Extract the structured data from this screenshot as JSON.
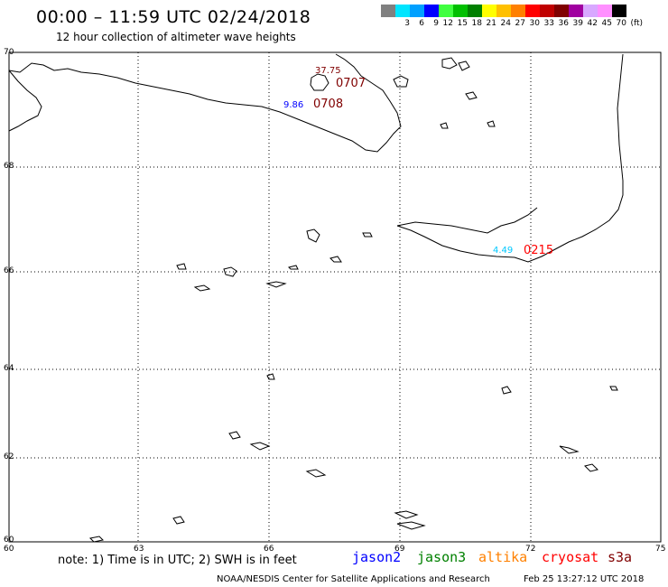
{
  "header": {
    "title": "00:00 – 11:59 UTC 02/24/2018",
    "subtitle": "12 hour collection of altimeter wave heights"
  },
  "color_scale": {
    "unit": "(ft)",
    "levels": [
      "3",
      "6",
      "9",
      "12",
      "15",
      "18",
      "21",
      "24",
      "27",
      "30",
      "33",
      "36",
      "39",
      "42",
      "45",
      "70"
    ],
    "colors": [
      "#808080",
      "#00e5ff",
      "#00a0ff",
      "#0000ff",
      "#40ff40",
      "#00c000",
      "#008000",
      "#ffff00",
      "#ffc000",
      "#ff8000",
      "#ff0000",
      "#c00000",
      "#800000",
      "#a000a0",
      "#d8a8ff",
      "#ff90ff",
      "#000000"
    ]
  },
  "axes": {
    "lat_labels": [
      "70",
      "68",
      "66",
      "64",
      "62",
      "60"
    ],
    "lon_labels": [
      "60",
      "63",
      "66",
      "69",
      "72",
      "75"
    ]
  },
  "annotations": [
    {
      "name": "swh-37-75",
      "text": "37.75",
      "color": "#800000"
    },
    {
      "name": "time-0707",
      "text": "0707",
      "color": "#800000"
    },
    {
      "name": "swh-9-86",
      "text": "9.86",
      "color": "#0000ff"
    },
    {
      "name": "time-0708",
      "text": "0708",
      "color": "#800000"
    },
    {
      "name": "swh-4-49",
      "text": "4.49",
      "color": "#00c8ff"
    },
    {
      "name": "time-0215",
      "text": "0215",
      "color": "#ff0000"
    }
  ],
  "footer": {
    "note": "note: 1) Time is in UTC; 2) SWH is in feet",
    "satellites": [
      {
        "name": "jason2",
        "color": "#0000ff"
      },
      {
        "name": "jason3",
        "color": "#008000"
      },
      {
        "name": "altika",
        "color": "#ff8000"
      },
      {
        "name": "cryosat",
        "color": "#ff0000"
      },
      {
        "name": "s3a",
        "color": "#800000"
      }
    ],
    "credit": "NOAA/NESDIS Center for Satellite Applications and Research",
    "generated": "Feb 25 13:27:12 UTC 2018"
  }
}
